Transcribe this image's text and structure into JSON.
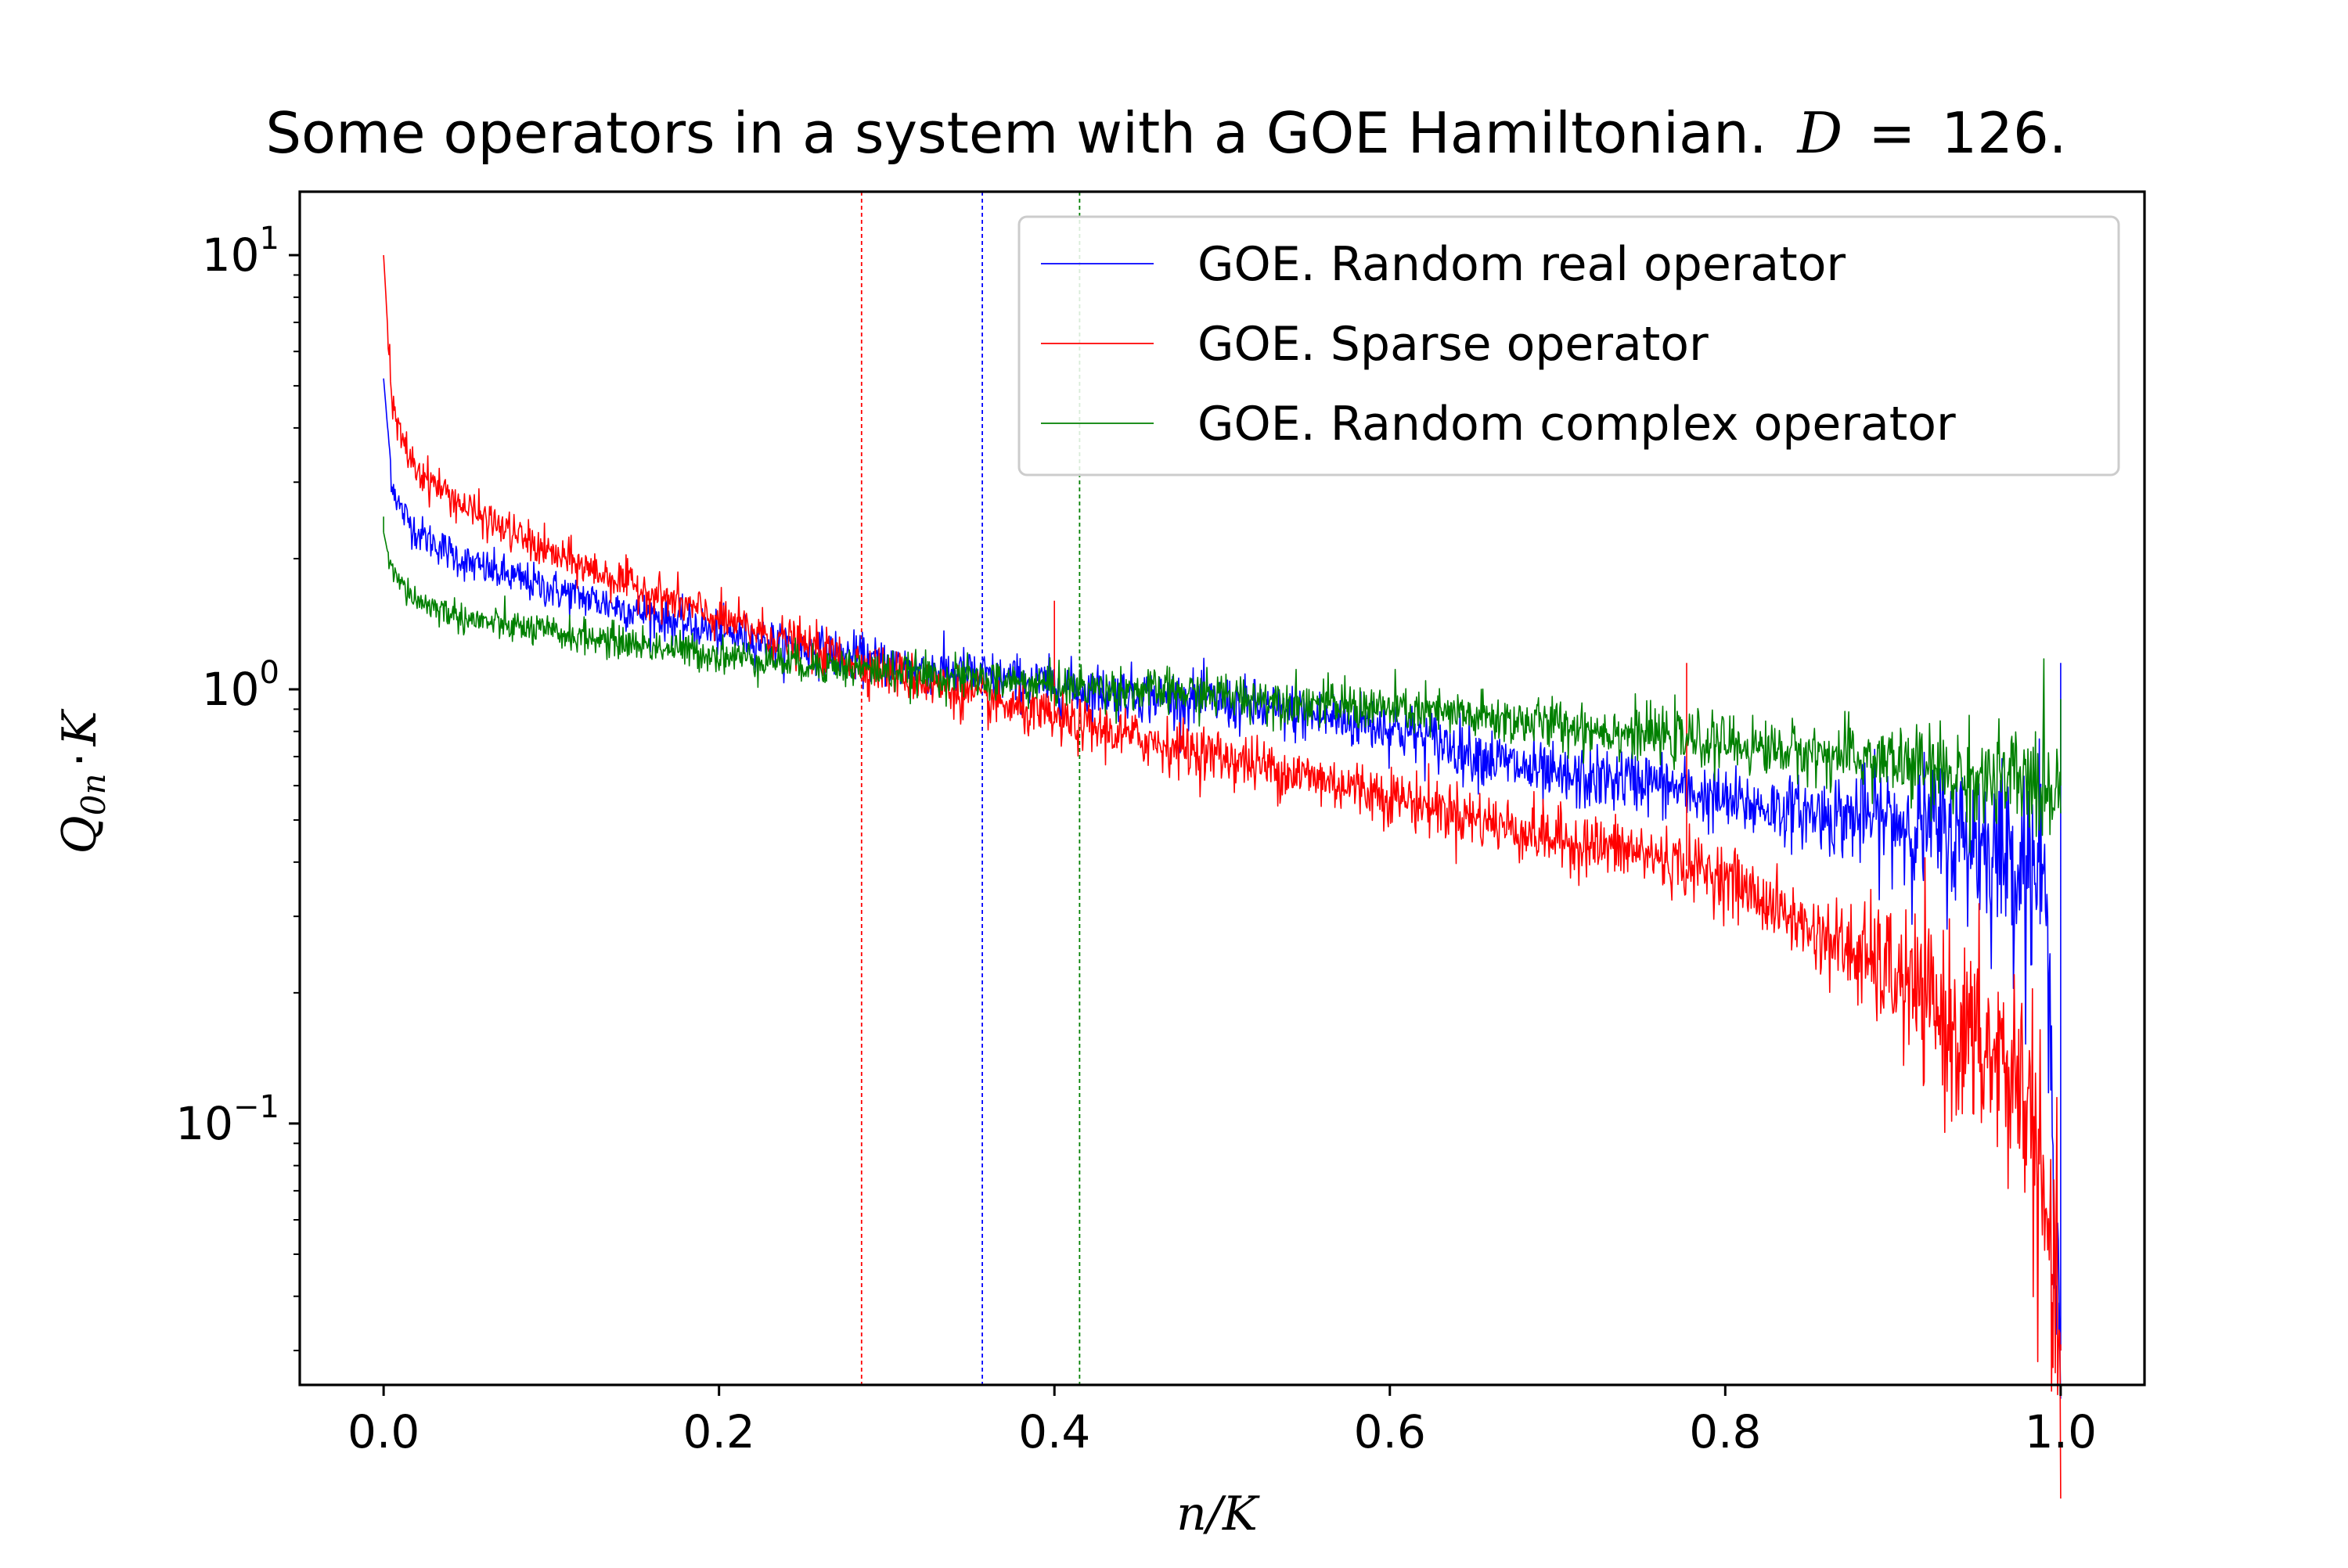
{
  "chart_data": {
    "type": "line",
    "title": "Some operators in a system with a GOE Hamiltonian. D = 126.",
    "title_parts": {
      "prefix": "Some operators in a system with a GOE Hamiltonian.",
      "var": "D",
      "eq": "=",
      "value": "126."
    },
    "xlabel": "n/K",
    "ylabel": "Q0n · K",
    "ylabel_parts": {
      "q": "Q",
      "sub": "0n",
      "dot": "·",
      "k": "K"
    },
    "xlim": [
      -0.05,
      1.05
    ],
    "ylim": [
      0.025,
      14.0
    ],
    "yscale": "log",
    "x_ticks": [
      0.0,
      0.2,
      0.4,
      0.6,
      0.8,
      1.0
    ],
    "x_tick_labels": [
      "0.0",
      "0.2",
      "0.4",
      "0.6",
      "0.8",
      "1.0"
    ],
    "y_ticks": [
      0.1,
      1,
      10
    ],
    "y_tick_labels": [
      {
        "base": "10",
        "exp": "−1"
      },
      {
        "base": "10",
        "exp": "0"
      },
      {
        "base": "10",
        "exp": "1"
      }
    ],
    "grid": false,
    "legend_position": "top-right",
    "series": [
      {
        "name": "GOE. Random real operator",
        "color": "#0000ff",
        "vline_x": 0.357,
        "x": [
          0.0,
          0.005,
          0.01,
          0.02,
          0.05,
          0.1,
          0.2,
          0.3,
          0.4,
          0.5,
          0.6,
          0.7,
          0.75,
          0.8,
          0.85,
          0.9,
          0.95,
          0.99,
          1.0
        ],
        "y": [
          5.2,
          3.0,
          2.6,
          2.3,
          1.95,
          1.7,
          1.35,
          1.15,
          1.02,
          0.93,
          0.82,
          0.62,
          0.62,
          0.55,
          0.52,
          0.5,
          0.45,
          0.38,
          0.03
        ],
        "noise": [
          0.06,
          0.12,
          0.35
        ],
        "spikes": [
          [
            0.0,
            5.2
          ],
          [
            1.0,
            1.15
          ],
          [
            0.999,
            0.032
          ]
        ]
      },
      {
        "name": "GOE. Sparse operator",
        "color": "#ff0000",
        "vline_x": 0.285,
        "x": [
          0.0,
          0.005,
          0.01,
          0.02,
          0.05,
          0.1,
          0.2,
          0.3,
          0.4,
          0.5,
          0.6,
          0.7,
          0.75,
          0.8,
          0.85,
          0.9,
          0.95,
          0.98,
          1.0
        ],
        "y": [
          10.0,
          4.5,
          3.8,
          3.2,
          2.6,
          2.05,
          1.45,
          1.1,
          0.85,
          0.7,
          0.57,
          0.45,
          0.42,
          0.37,
          0.28,
          0.22,
          0.15,
          0.12,
          0.03
        ],
        "noise": [
          0.06,
          0.12,
          0.45
        ],
        "spikes": [
          [
            0.0,
            10.0
          ],
          [
            0.4,
            1.6
          ],
          [
            0.777,
            1.15
          ],
          [
            0.995,
            0.045
          ],
          [
            1.0,
            0.031
          ]
        ]
      },
      {
        "name": "GOE. Random complex operator",
        "color": "#008000",
        "vline_x": 0.415,
        "x": [
          0.0,
          0.005,
          0.01,
          0.02,
          0.05,
          0.1,
          0.2,
          0.3,
          0.4,
          0.5,
          0.6,
          0.7,
          0.8,
          0.9,
          0.95,
          1.0
        ],
        "y": [
          2.3,
          1.85,
          1.75,
          1.6,
          1.45,
          1.35,
          1.2,
          1.1,
          1.02,
          0.97,
          0.9,
          0.83,
          0.75,
          0.68,
          0.62,
          0.6
        ],
        "noise": [
          0.05,
          0.1,
          0.2
        ],
        "spikes": [
          [
            0.0,
            2.5
          ],
          [
            1.0,
            0.95
          ]
        ]
      }
    ]
  }
}
